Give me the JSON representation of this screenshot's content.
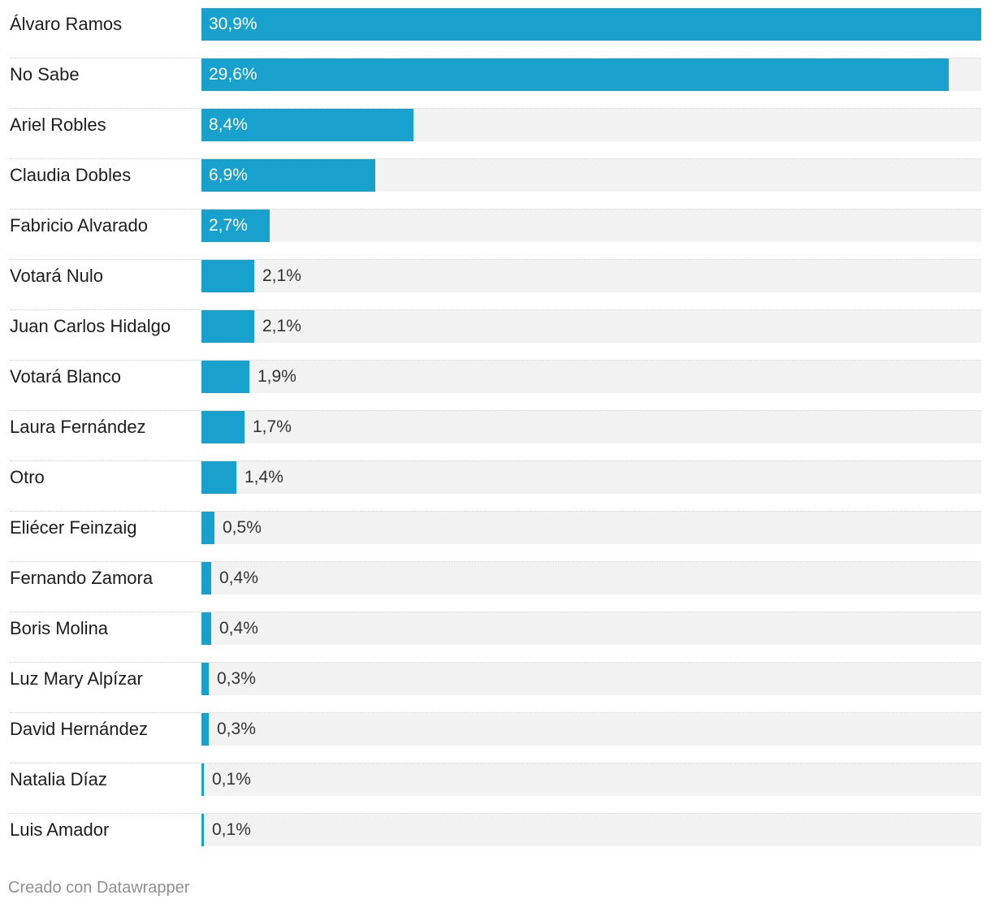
{
  "chart_data": {
    "type": "bar",
    "orientation": "horizontal",
    "categories": [
      "Álvaro Ramos",
      "No Sabe",
      "Ariel Robles",
      "Claudia Dobles",
      "Fabricio Alvarado",
      "Votará Nulo",
      "Juan Carlos Hidalgo",
      "Votará Blanco",
      "Laura Fernández",
      "Otro",
      "Eliécer Feinzaig",
      "Fernando Zamora",
      "Boris Molina",
      "Luz Mary Alpízar",
      "David Hernández",
      "Natalia Díaz",
      "Luis Amador"
    ],
    "values": [
      30.9,
      29.6,
      8.4,
      6.9,
      2.7,
      2.1,
      2.1,
      1.9,
      1.7,
      1.4,
      0.5,
      0.4,
      0.4,
      0.3,
      0.3,
      0.1,
      0.1
    ],
    "value_labels": [
      "30,9%",
      "29,6%",
      "8,4%",
      "6,9%",
      "2,7%",
      "2,1%",
      "2,1%",
      "1,9%",
      "1,7%",
      "1,4%",
      "0,5%",
      "0,4%",
      "0,4%",
      "0,3%",
      "0,3%",
      "0,1%",
      "0,1%"
    ],
    "xlim": [
      0,
      30.9
    ],
    "bar_color": "#18a1cd",
    "track_color": "#f2f2f2",
    "grid": false,
    "legend": "none"
  },
  "footer": {
    "credit": "Creado con Datawrapper"
  }
}
